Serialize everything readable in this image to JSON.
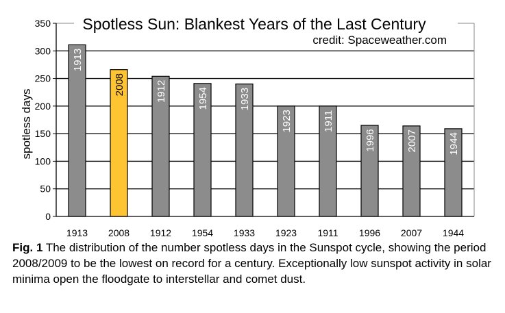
{
  "chart_data": {
    "type": "bar",
    "title": "Spotless Sun: Blankest Years of the Last Century",
    "subtitle": "credit: Spaceweather.com",
    "xlabel": "",
    "ylabel": "spotless days",
    "categories": [
      "1913",
      "2008",
      "1912",
      "1954",
      "1933",
      "1923",
      "1911",
      "1996",
      "2007",
      "1944"
    ],
    "values": [
      311,
      266,
      254,
      241,
      240,
      200,
      200,
      165,
      164,
      159
    ],
    "bar_labels": [
      "1913",
      "2008",
      "1912",
      "1954",
      "1933",
      "1923",
      "1911",
      "1996",
      "2007",
      "1944"
    ],
    "highlight_index": 1,
    "ylim": [
      0,
      350
    ],
    "yticks": [
      0,
      50,
      100,
      150,
      200,
      250,
      300,
      350
    ],
    "grid": true,
    "legend": "none",
    "colors": {
      "bar": "#8c8c8c",
      "highlight": "#ffc431",
      "grid": "#000000"
    }
  },
  "caption": {
    "label": "Fig. 1",
    "text": "The distribution of the number spotless days in the Sunspot cycle, showing the period 2008/2009 to be the lowest on record for a century. Exceptionally low sunspot activity in solar minima open the floodgate to interstellar and comet dust."
  }
}
